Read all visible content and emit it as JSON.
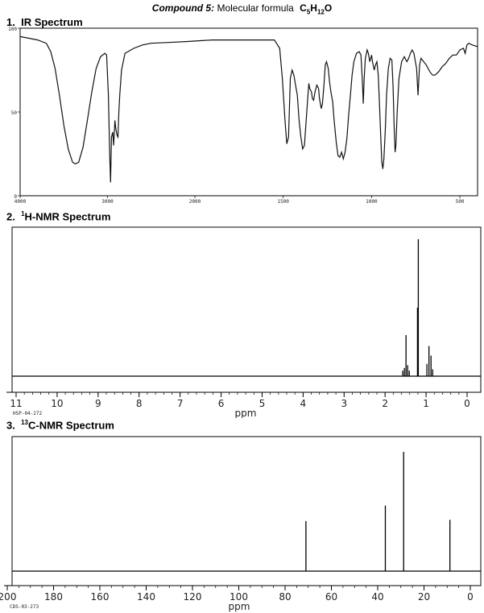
{
  "header": {
    "compound": "Compound 5:",
    "formula_prefix": "Molecular formula",
    "formula_c": "C",
    "formula_c_sub": "5",
    "formula_h": "H",
    "formula_h_sub": "12",
    "formula_o": "O"
  },
  "sections": {
    "ir": {
      "number": "1.",
      "title": "IR Spectrum"
    },
    "hnmr": {
      "number": "2.",
      "sup": "1",
      "title": "H-NMR Spectrum"
    },
    "cnmr": {
      "number": "3.",
      "sup": "13",
      "title": "C-NMR Spectrum"
    }
  },
  "chart_data": [
    {
      "type": "line",
      "xlim": [
        4000,
        400
      ],
      "ylim": [
        0,
        100
      ],
      "x_ticks": [
        "4000",
        "3000",
        "2000",
        "1500",
        "1000",
        "500"
      ],
      "y_ticks": [
        "100",
        "50",
        "0"
      ],
      "grid": false,
      "series": [
        {
          "points": [
            [
              4000,
              95
            ],
            [
              3900,
              94
            ],
            [
              3800,
              93
            ],
            [
              3700,
              91
            ],
            [
              3650,
              86
            ],
            [
              3600,
              76
            ],
            [
              3550,
              60
            ],
            [
              3500,
              42
            ],
            [
              3450,
              28
            ],
            [
              3400,
              20
            ],
            [
              3370,
              19
            ],
            [
              3330,
              20
            ],
            [
              3280,
              29
            ],
            [
              3230,
              45
            ],
            [
              3180,
              62
            ],
            [
              3130,
              76
            ],
            [
              3080,
              83
            ],
            [
              3030,
              85
            ],
            [
              3010,
              84
            ],
            [
              2990,
              60
            ],
            [
              2975,
              25
            ],
            [
              2965,
              8
            ],
            [
              2955,
              35
            ],
            [
              2940,
              38
            ],
            [
              2930,
              30
            ],
            [
              2915,
              45
            ],
            [
              2905,
              40
            ],
            [
              2890,
              36
            ],
            [
              2880,
              35
            ],
            [
              2870,
              50
            ],
            [
              2860,
              60
            ],
            [
              2840,
              75
            ],
            [
              2800,
              85
            ],
            [
              2700,
              88
            ],
            [
              2600,
              90
            ],
            [
              2500,
              91
            ],
            [
              2300,
              91.5
            ],
            [
              2100,
              92
            ],
            [
              1900,
              93
            ],
            [
              1800,
              93
            ],
            [
              1700,
              93
            ],
            [
              1600,
              93
            ],
            [
              1550,
              93
            ],
            [
              1520,
              88
            ],
            [
              1505,
              70
            ],
            [
              1490,
              45
            ],
            [
              1480,
              31
            ],
            [
              1470,
              35
            ],
            [
              1460,
              70
            ],
            [
              1450,
              75
            ],
            [
              1440,
              72
            ],
            [
              1430,
              66
            ],
            [
              1420,
              60
            ],
            [
              1410,
              45
            ],
            [
              1400,
              35
            ],
            [
              1390,
              28
            ],
            [
              1380,
              30
            ],
            [
              1370,
              45
            ],
            [
              1360,
              60
            ],
            [
              1355,
              67
            ],
            [
              1350,
              64
            ],
            [
              1340,
              62
            ],
            [
              1335,
              58
            ],
            [
              1328,
              57
            ],
            [
              1320,
              62
            ],
            [
              1310,
              66
            ],
            [
              1300,
              64
            ],
            [
              1295,
              58
            ],
            [
              1285,
              52
            ],
            [
              1278,
              55
            ],
            [
              1270,
              65
            ],
            [
              1262,
              78
            ],
            [
              1255,
              80
            ],
            [
              1245,
              76
            ],
            [
              1238,
              68
            ],
            [
              1230,
              62
            ],
            [
              1220,
              56
            ],
            [
              1212,
              45
            ],
            [
              1200,
              32
            ],
            [
              1190,
              24
            ],
            [
              1180,
              23
            ],
            [
              1170,
              26
            ],
            [
              1160,
              22
            ],
            [
              1150,
              26
            ],
            [
              1140,
              34
            ],
            [
              1130,
              48
            ],
            [
              1120,
              60
            ],
            [
              1110,
              72
            ],
            [
              1100,
              80
            ],
            [
              1085,
              85
            ],
            [
              1070,
              86
            ],
            [
              1060,
              84
            ],
            [
              1052,
              68
            ],
            [
              1047,
              55
            ],
            [
              1042,
              70
            ],
            [
              1035,
              82
            ],
            [
              1025,
              87
            ],
            [
              1018,
              85
            ],
            [
              1010,
              80
            ],
            [
              1005,
              82
            ],
            [
              1000,
              84
            ],
            [
              995,
              80
            ],
            [
              985,
              75
            ],
            [
              978,
              78
            ],
            [
              970,
              80
            ],
            [
              962,
              72
            ],
            [
              955,
              55
            ],
            [
              948,
              35
            ],
            [
              942,
              20
            ],
            [
              936,
              16
            ],
            [
              930,
              22
            ],
            [
              922,
              40
            ],
            [
              915,
              60
            ],
            [
              905,
              76
            ],
            [
              895,
              82
            ],
            [
              885,
              81
            ],
            [
              878,
              65
            ],
            [
              872,
              40
            ],
            [
              867,
              26
            ],
            [
              862,
              30
            ],
            [
              855,
              50
            ],
            [
              845,
              70
            ],
            [
              830,
              80
            ],
            [
              815,
              83
            ],
            [
              800,
              80
            ],
            [
              790,
              82
            ],
            [
              780,
              85
            ],
            [
              770,
              87
            ],
            [
              760,
              85
            ],
            [
              752,
              80
            ],
            [
              745,
              76
            ],
            [
              740,
              66
            ],
            [
              737,
              60
            ],
            [
              733,
              68
            ],
            [
              728,
              78
            ],
            [
              720,
              82
            ],
            [
              705,
              80
            ],
            [
              690,
              78
            ],
            [
              670,
              74
            ],
            [
              655,
              72
            ],
            [
              640,
              72
            ],
            [
              620,
              74
            ],
            [
              600,
              77
            ],
            [
              580,
              79
            ],
            [
              560,
              82
            ],
            [
              540,
              84
            ],
            [
              520,
              84
            ],
            [
              500,
              87
            ],
            [
              480,
              88
            ],
            [
              470,
              85
            ],
            [
              460,
              90
            ],
            [
              450,
              91
            ],
            [
              430,
              90
            ],
            [
              400,
              89
            ]
          ]
        }
      ]
    },
    {
      "type": "line",
      "xlim": [
        11,
        0
      ],
      "x_ticks": [
        "11",
        "10",
        "9",
        "8",
        "7",
        "6",
        "5",
        "4",
        "3",
        "2",
        "1",
        "0"
      ],
      "xlabel": "ppm",
      "code": "HSP-04-272",
      "peaks": [
        {
          "ppm": 1.49,
          "height": 0.3
        },
        {
          "ppm": 1.45,
          "height": 0.08
        },
        {
          "ppm": 1.53,
          "height": 0.06
        },
        {
          "ppm": 1.57,
          "height": 0.04
        },
        {
          "ppm": 1.41,
          "height": 0.04
        },
        {
          "ppm": 1.19,
          "height": 1.0
        },
        {
          "ppm": 1.21,
          "height": 0.5
        },
        {
          "ppm": 0.93,
          "height": 0.22
        },
        {
          "ppm": 0.88,
          "height": 0.15
        },
        {
          "ppm": 0.98,
          "height": 0.09
        },
        {
          "ppm": 0.84,
          "height": 0.05
        }
      ]
    },
    {
      "type": "line",
      "xlim": [
        200,
        0
      ],
      "x_ticks": [
        "200",
        "180",
        "160",
        "140",
        "120",
        "100",
        "80",
        "60",
        "40",
        "20",
        "0"
      ],
      "xlabel": "ppm",
      "code": "CDS-03-273",
      "peaks": [
        {
          "ppm": 71.0,
          "height": 0.42
        },
        {
          "ppm": 36.7,
          "height": 0.55
        },
        {
          "ppm": 28.8,
          "height": 1.0
        },
        {
          "ppm": 8.8,
          "height": 0.43
        }
      ]
    }
  ]
}
